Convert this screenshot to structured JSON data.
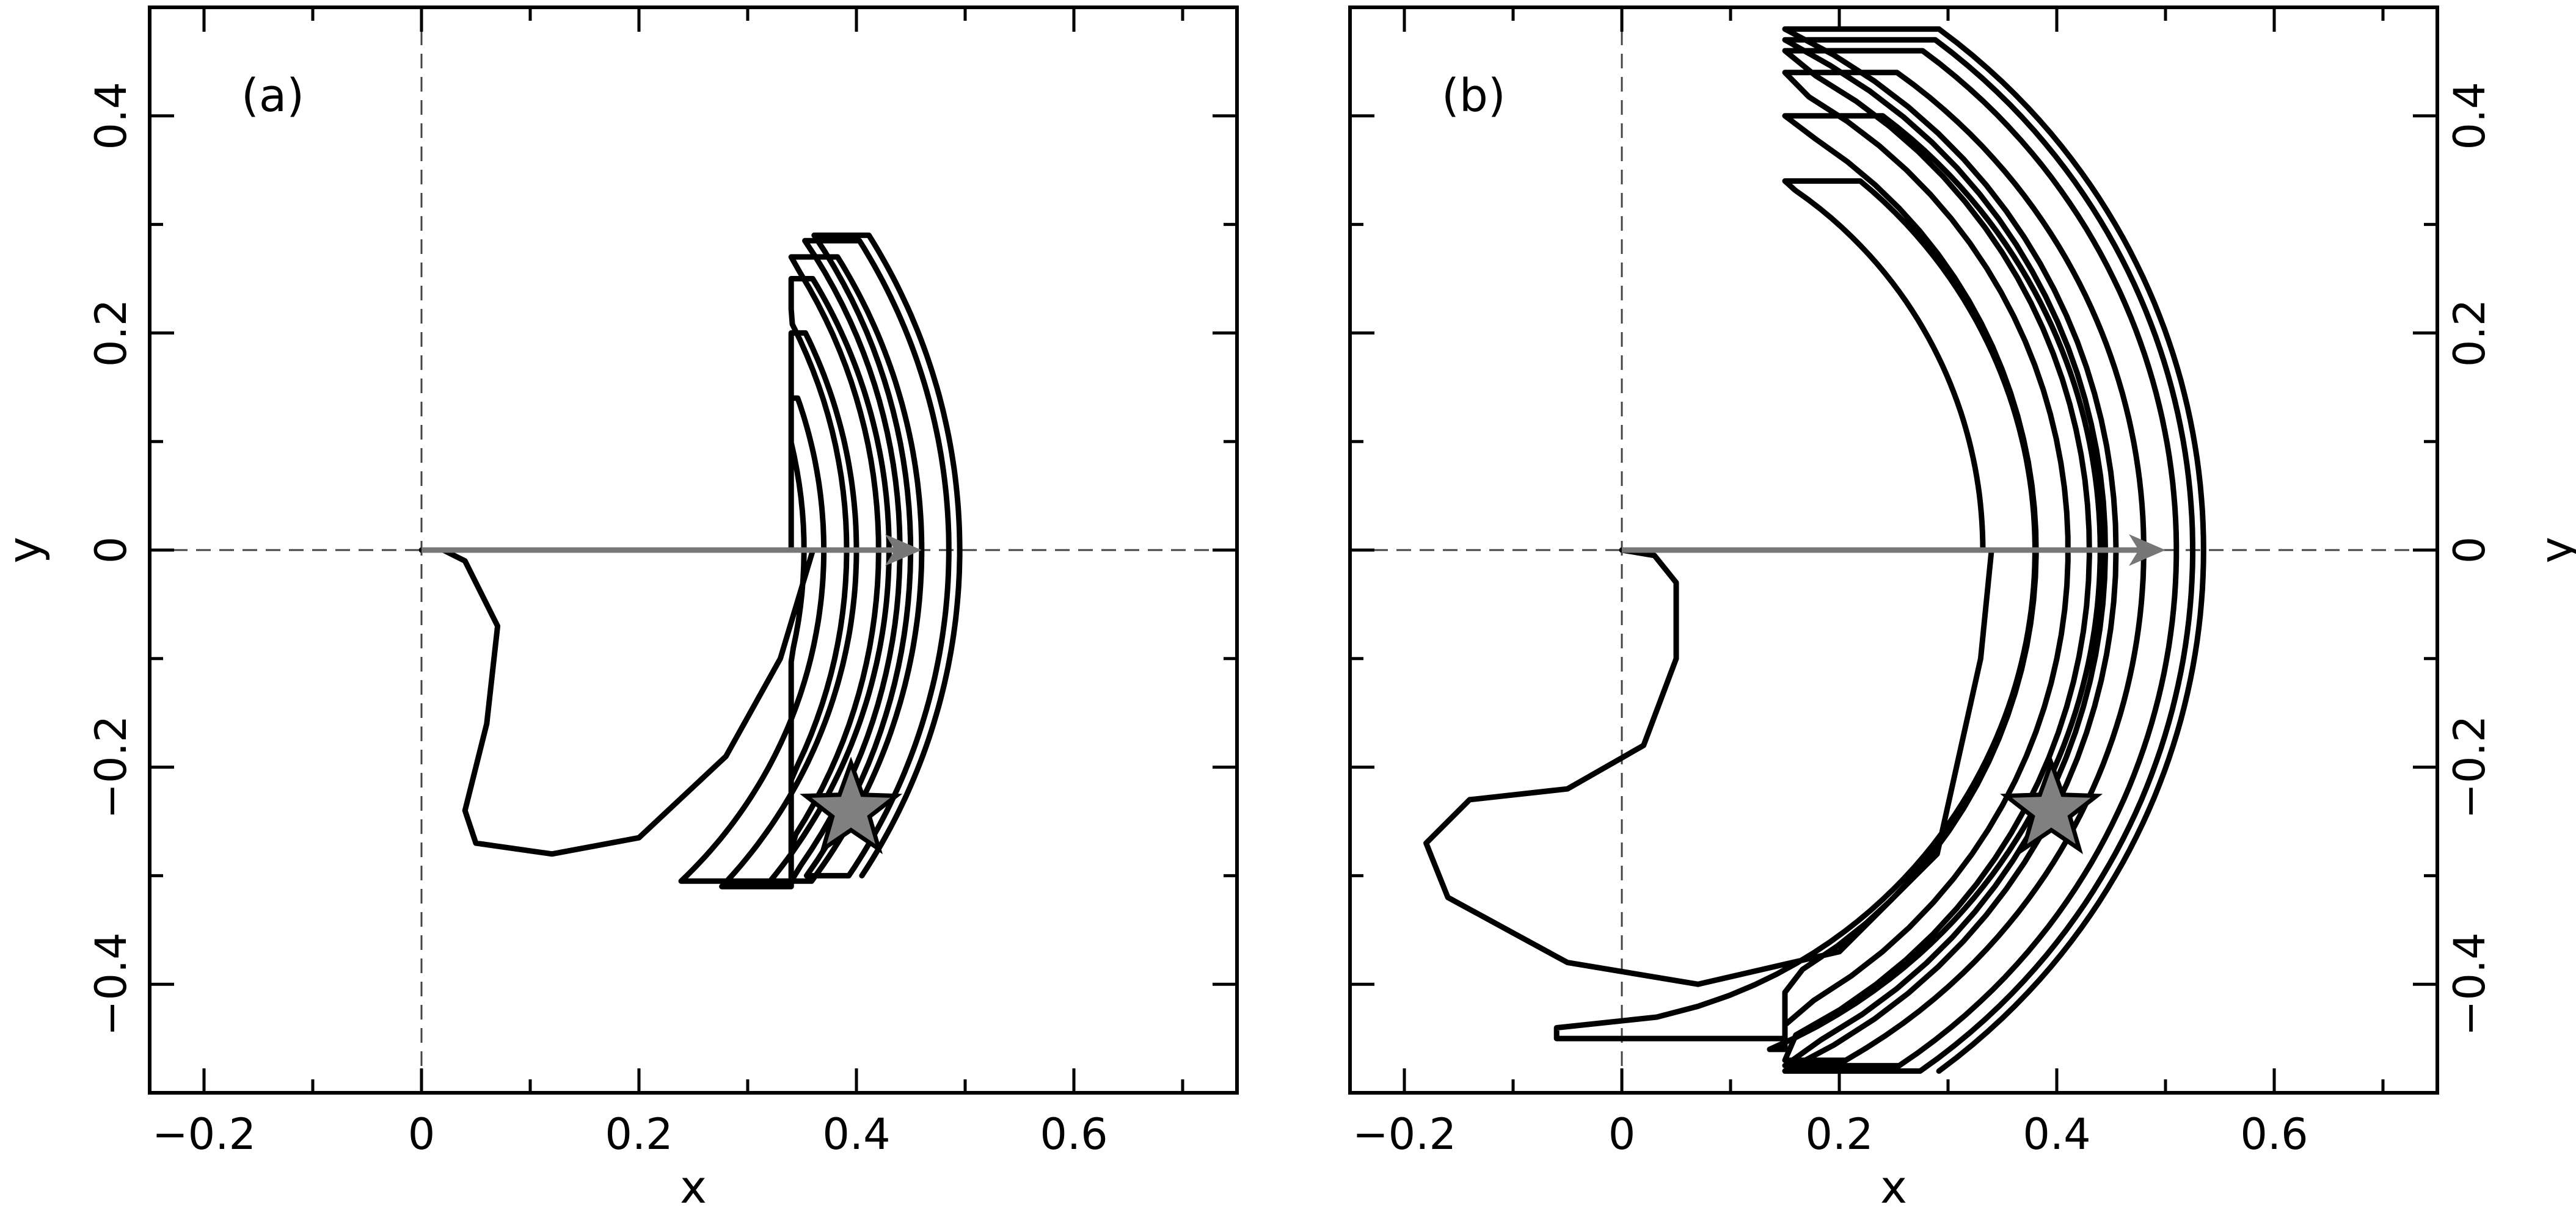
{
  "chart_data": [
    {
      "type": "line",
      "panel_label": "(a)",
      "xlabel": "x",
      "ylabel": "y",
      "xlim": [
        -0.25,
        0.75
      ],
      "ylim": [
        -0.5,
        0.5
      ],
      "xticks": [
        -0.2,
        0,
        0.2,
        0.4,
        0.6
      ],
      "xtick_labels": [
        "−0.2",
        "0",
        "0.2",
        "0.4",
        "0.6"
      ],
      "yticks": [
        -0.4,
        -0.2,
        0,
        0.2,
        0.4
      ],
      "ytick_labels": [
        "−0.4",
        "−0.2",
        "0",
        "0.2",
        "0.4"
      ],
      "ylabel_side": "left",
      "zero_lines": true,
      "arrow": {
        "from": [
          0,
          0
        ],
        "to": [
          0.46,
          0
        ],
        "color": "#777777"
      },
      "star": {
        "x": 0.395,
        "y": -0.24,
        "color": "#808080"
      },
      "trajectory": {
        "start": [
          [
            0.0,
            0.0
          ],
          [
            0.02,
            0.0
          ],
          [
            0.04,
            -0.01
          ],
          [
            0.07,
            -0.07
          ],
          [
            0.06,
            -0.16
          ],
          [
            0.04,
            -0.24
          ],
          [
            0.05,
            -0.27
          ],
          [
            0.12,
            -0.28
          ],
          [
            0.2,
            -0.265
          ],
          [
            0.28,
            -0.19
          ],
          [
            0.33,
            -0.1
          ],
          [
            0.36,
            0.0
          ]
        ],
        "arc_center": [
          -0.05,
          0.0
        ],
        "tip_top": [
          0.36,
          0.29
        ],
        "tip_bottom": [
          0.38,
          -0.3
        ],
        "outer_radius_x": [
          0.37,
          0.4,
          0.43,
          0.46,
          0.485,
          0.495,
          0.5,
          0.502,
          0.504
        ],
        "inner_radius_x": [
          0.3,
          0.36,
          0.4,
          0.43,
          0.45,
          0.46,
          0.465,
          0.47
        ],
        "loop_top_y": [
          0.14,
          0.2,
          0.25,
          0.27,
          0.285,
          0.29
        ],
        "loop_bottom_y": [
          -0.305,
          -0.31,
          -0.305,
          -0.305,
          -0.3,
          -0.3
        ]
      }
    },
    {
      "type": "line",
      "panel_label": "(b)",
      "xlabel": "x",
      "ylabel": "y",
      "xlim": [
        -0.25,
        0.75
      ],
      "ylim": [
        -0.5,
        0.5
      ],
      "xticks": [
        -0.2,
        0,
        0.2,
        0.4,
        0.6
      ],
      "xtick_labels": [
        "−0.2",
        "0",
        "0.2",
        "0.4",
        "0.6"
      ],
      "yticks": [
        -0.4,
        -0.2,
        0,
        0.2,
        0.4
      ],
      "ytick_labels": [
        "−0.4",
        "−0.2",
        "0",
        "0.2",
        "0.4"
      ],
      "ylabel_side": "right",
      "zero_lines": true,
      "arrow": {
        "from": [
          0,
          0
        ],
        "to": [
          0.5,
          0
        ],
        "color": "#777777"
      },
      "star": {
        "x": 0.395,
        "y": -0.24,
        "color": "#808080"
      },
      "trajectory": {
        "start": [
          [
            0.0,
            0.0
          ],
          [
            0.03,
            -0.005
          ],
          [
            0.05,
            -0.03
          ],
          [
            0.05,
            -0.1
          ],
          [
            0.02,
            -0.18
          ],
          [
            -0.05,
            -0.22
          ],
          [
            -0.14,
            -0.23
          ],
          [
            -0.18,
            -0.27
          ],
          [
            -0.16,
            -0.32
          ],
          [
            -0.05,
            -0.38
          ],
          [
            0.07,
            -0.4
          ],
          [
            0.2,
            -0.37
          ],
          [
            0.29,
            -0.28
          ],
          [
            0.33,
            -0.1
          ],
          [
            0.34,
            0.0
          ]
        ],
        "arc_center": [
          -0.06,
          0.0
        ],
        "tip_top": [
          0.17,
          0.48
        ],
        "tip_bottom": [
          0.18,
          -0.48
        ],
        "outer_radius_x": [
          0.38,
          0.44,
          0.48,
          0.51,
          0.525,
          0.535,
          0.54,
          0.545
        ],
        "inner_radius_x": [
          0.34,
          0.39,
          0.42,
          0.44,
          0.455,
          0.465,
          0.47
        ],
        "loop_top_y": [
          0.34,
          0.4,
          0.44,
          0.46,
          0.47,
          0.48
        ],
        "loop_bottom_y": [
          -0.45,
          -0.46,
          -0.47,
          -0.475,
          -0.48,
          -0.48
        ]
      }
    }
  ]
}
